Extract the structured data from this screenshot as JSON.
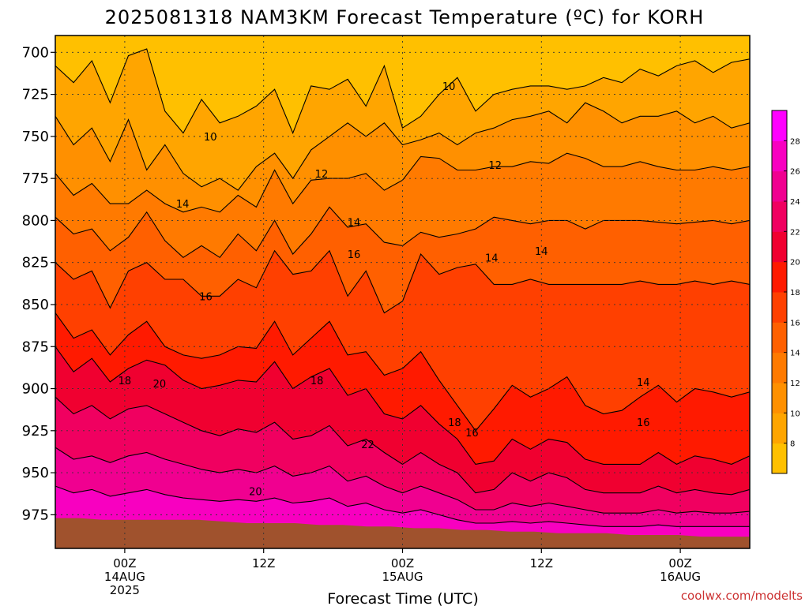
{
  "chart_data": {
    "type": "heatmap",
    "title": "2025081318 NAM3KM Forecast Temperature (ºC) for KORH",
    "xlabel": "Forecast Time (UTC)",
    "ylabel": "",
    "credit": "coolwx.com/modelts",
    "x_ticks": [
      {
        "hour": 6,
        "lines": [
          "00Z",
          "14AUG",
          "2025"
        ]
      },
      {
        "hour": 18,
        "lines": [
          "12Z"
        ]
      },
      {
        "hour": 30,
        "lines": [
          "00Z",
          "15AUG"
        ]
      },
      {
        "hour": 42,
        "lines": [
          "12Z"
        ]
      },
      {
        "hour": 54,
        "lines": [
          "00Z",
          "16AUG"
        ]
      }
    ],
    "xlim": [
      0,
      60
    ],
    "y_ticks": [
      700,
      725,
      750,
      775,
      800,
      825,
      850,
      875,
      900,
      925,
      950,
      975
    ],
    "ylim": [
      690,
      995
    ],
    "y_direction": "inverted (pressure decreasing upward)",
    "grid": "dotted",
    "colorbar": {
      "placement": "right",
      "ticks": [
        8,
        10,
        12,
        14,
        16,
        18,
        20,
        22,
        24,
        26,
        28
      ],
      "colors": [
        "#ffc000",
        "#ffa500",
        "#ff9000",
        "#ff7a00",
        "#ff6000",
        "#ff4000",
        "#ff1a00",
        "#f00030",
        "#f00060",
        "#f00090",
        "#f800c0",
        "#ff00ff"
      ]
    },
    "contour_labels": [
      {
        "text": "10",
        "hour": 13.4,
        "pressure": 750
      },
      {
        "text": "10",
        "hour": 34.0,
        "pressure": 720
      },
      {
        "text": "12",
        "hour": 23.0,
        "pressure": 772
      },
      {
        "text": "12",
        "hour": 38.0,
        "pressure": 767
      },
      {
        "text": "14",
        "hour": 11.0,
        "pressure": 790
      },
      {
        "text": "14",
        "hour": 25.8,
        "pressure": 801
      },
      {
        "text": "14",
        "hour": 37.7,
        "pressure": 822
      },
      {
        "text": "14",
        "hour": 42.0,
        "pressure": 818
      },
      {
        "text": "14",
        "hour": 50.8,
        "pressure": 896
      },
      {
        "text": "16",
        "hour": 13.0,
        "pressure": 845
      },
      {
        "text": "16",
        "hour": 25.8,
        "pressure": 820
      },
      {
        "text": "16",
        "hour": 36.0,
        "pressure": 926
      },
      {
        "text": "16",
        "hour": 50.8,
        "pressure": 920
      },
      {
        "text": "18",
        "hour": 6.0,
        "pressure": 895
      },
      {
        "text": "18",
        "hour": 22.6,
        "pressure": 895
      },
      {
        "text": "18",
        "hour": 34.5,
        "pressure": 920
      },
      {
        "text": "20",
        "hour": 9.0,
        "pressure": 897
      },
      {
        "text": "20",
        "hour": 17.3,
        "pressure": 961
      },
      {
        "text": "22",
        "hour": 27.0,
        "pressure": 933
      }
    ],
    "levels": [
      {
        "value": 10,
        "color": "#ffa500",
        "pressure": [
          708,
          718,
          705,
          730,
          702,
          698,
          735,
          748,
          728,
          742,
          738,
          732,
          722,
          748,
          720,
          722,
          716,
          732,
          708,
          745,
          738,
          725,
          715,
          735,
          725,
          722,
          720,
          720,
          722,
          720,
          715,
          718,
          710,
          714,
          708,
          705,
          712,
          706,
          704
        ]
      },
      {
        "value": 12,
        "color": "#ff9000",
        "pressure": [
          738,
          755,
          745,
          765,
          740,
          770,
          755,
          772,
          780,
          775,
          782,
          768,
          760,
          775,
          758,
          750,
          742,
          750,
          742,
          755,
          752,
          748,
          755,
          748,
          745,
          740,
          738,
          735,
          742,
          730,
          735,
          742,
          738,
          738,
          735,
          742,
          738,
          745,
          742
        ]
      },
      {
        "value": 14,
        "color": "#ff7a00",
        "pressure": [
          772,
          785,
          778,
          790,
          790,
          782,
          790,
          795,
          792,
          795,
          785,
          792,
          770,
          790,
          776,
          775,
          775,
          772,
          782,
          776,
          762,
          763,
          770,
          770,
          768,
          768,
          765,
          766,
          760,
          763,
          768,
          768,
          765,
          768,
          770,
          770,
          768,
          770,
          768
        ]
      },
      {
        "value": 16,
        "color": "#ff6000",
        "pressure": [
          798,
          808,
          805,
          818,
          810,
          795,
          812,
          822,
          815,
          822,
          808,
          818,
          800,
          820,
          808,
          792,
          804,
          802,
          813,
          815,
          807,
          810,
          808,
          805,
          798,
          800,
          802,
          800,
          800,
          805,
          800,
          800,
          800,
          801,
          802,
          801,
          800,
          802,
          800
        ]
      },
      {
        "value": 18,
        "color": "#ff4000",
        "pressure": [
          825,
          835,
          830,
          852,
          830,
          825,
          835,
          835,
          845,
          845,
          835,
          840,
          818,
          832,
          830,
          818,
          845,
          830,
          855,
          848,
          820,
          832,
          828,
          826,
          838,
          838,
          835,
          838,
          838,
          838,
          838,
          838,
          836,
          838,
          838,
          836,
          838,
          836,
          838
        ]
      },
      {
        "value": 20,
        "color": "#ff1a00",
        "pressure": [
          855,
          870,
          865,
          880,
          868,
          860,
          875,
          880,
          882,
          880,
          875,
          876,
          860,
          880,
          870,
          860,
          880,
          878,
          892,
          888,
          878,
          895,
          910,
          925,
          912,
          898,
          905,
          900,
          893,
          910,
          915,
          913,
          905,
          898,
          908,
          900,
          902,
          905,
          902
        ]
      },
      {
        "value": 22,
        "color": "#f00030",
        "pressure": [
          875,
          890,
          882,
          896,
          888,
          883,
          886,
          895,
          900,
          898,
          895,
          896,
          884,
          900,
          893,
          888,
          904,
          900,
          915,
          918,
          910,
          921,
          930,
          945,
          943,
          930,
          936,
          930,
          932,
          942,
          945,
          945,
          945,
          938,
          945,
          940,
          942,
          945,
          940
        ]
      },
      {
        "value": 24,
        "color": "#f00060",
        "pressure": [
          905,
          915,
          910,
          918,
          912,
          910,
          915,
          920,
          925,
          928,
          924,
          926,
          920,
          930,
          928,
          922,
          934,
          930,
          938,
          945,
          938,
          945,
          950,
          962,
          960,
          950,
          955,
          950,
          953,
          960,
          962,
          962,
          962,
          958,
          962,
          960,
          962,
          963,
          960
        ]
      },
      {
        "value": 26,
        "color": "#f00090",
        "pressure": [
          935,
          942,
          940,
          944,
          940,
          938,
          942,
          945,
          948,
          950,
          948,
          950,
          946,
          952,
          950,
          946,
          955,
          952,
          958,
          962,
          958,
          962,
          966,
          972,
          972,
          968,
          970,
          968,
          970,
          972,
          974,
          974,
          974,
          972,
          974,
          973,
          974,
          974,
          973
        ]
      },
      {
        "value": 28,
        "color": "#f800c0",
        "pressure": [
          958,
          962,
          960,
          964,
          962,
          960,
          963,
          965,
          966,
          967,
          966,
          967,
          965,
          968,
          967,
          965,
          970,
          968,
          972,
          974,
          972,
          975,
          978,
          980,
          980,
          979,
          980,
          979,
          980,
          981,
          982,
          982,
          982,
          981,
          982,
          982,
          982,
          982,
          982
        ]
      }
    ],
    "base_color": "#ffc000",
    "ground": {
      "color": "#a0522d",
      "pressure": [
        977,
        977,
        978,
        978,
        978,
        978,
        978,
        979,
        980,
        980,
        980,
        981,
        981,
        982,
        982,
        983,
        983,
        984,
        984,
        985,
        985,
        986,
        986,
        986,
        987,
        987,
        987,
        988,
        988,
        988
      ]
    }
  }
}
